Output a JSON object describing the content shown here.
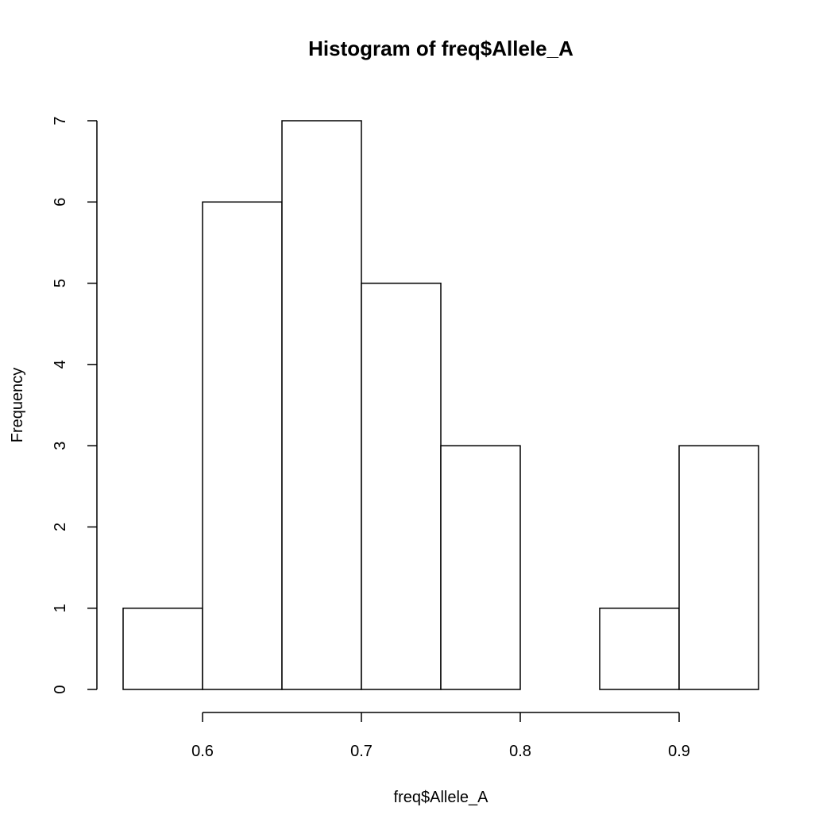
{
  "chart_data": {
    "type": "bar",
    "subtype": "histogram",
    "title": "Histogram of freq$Allele_A",
    "xlabel": "freq$Allele_A",
    "ylabel": "Frequency",
    "bins": [
      {
        "x0": 0.55,
        "x1": 0.6,
        "count": 1
      },
      {
        "x0": 0.6,
        "x1": 0.65,
        "count": 6
      },
      {
        "x0": 0.65,
        "x1": 0.7,
        "count": 7
      },
      {
        "x0": 0.7,
        "x1": 0.75,
        "count": 5
      },
      {
        "x0": 0.75,
        "x1": 0.8,
        "count": 3
      },
      {
        "x0": 0.8,
        "x1": 0.85,
        "count": 0
      },
      {
        "x0": 0.85,
        "x1": 0.9,
        "count": 1
      },
      {
        "x0": 0.9,
        "x1": 0.95,
        "count": 3
      }
    ],
    "xticks": [
      "0.6",
      "0.7",
      "0.8",
      "0.9"
    ],
    "yticks": [
      "0",
      "1",
      "2",
      "3",
      "4",
      "5",
      "6",
      "7"
    ],
    "xlim": [
      0.55,
      0.95
    ],
    "ylim": [
      0,
      7
    ],
    "bar_fill": "#ffffff",
    "bar_stroke": "#000000",
    "grid": false,
    "legend": "none"
  }
}
